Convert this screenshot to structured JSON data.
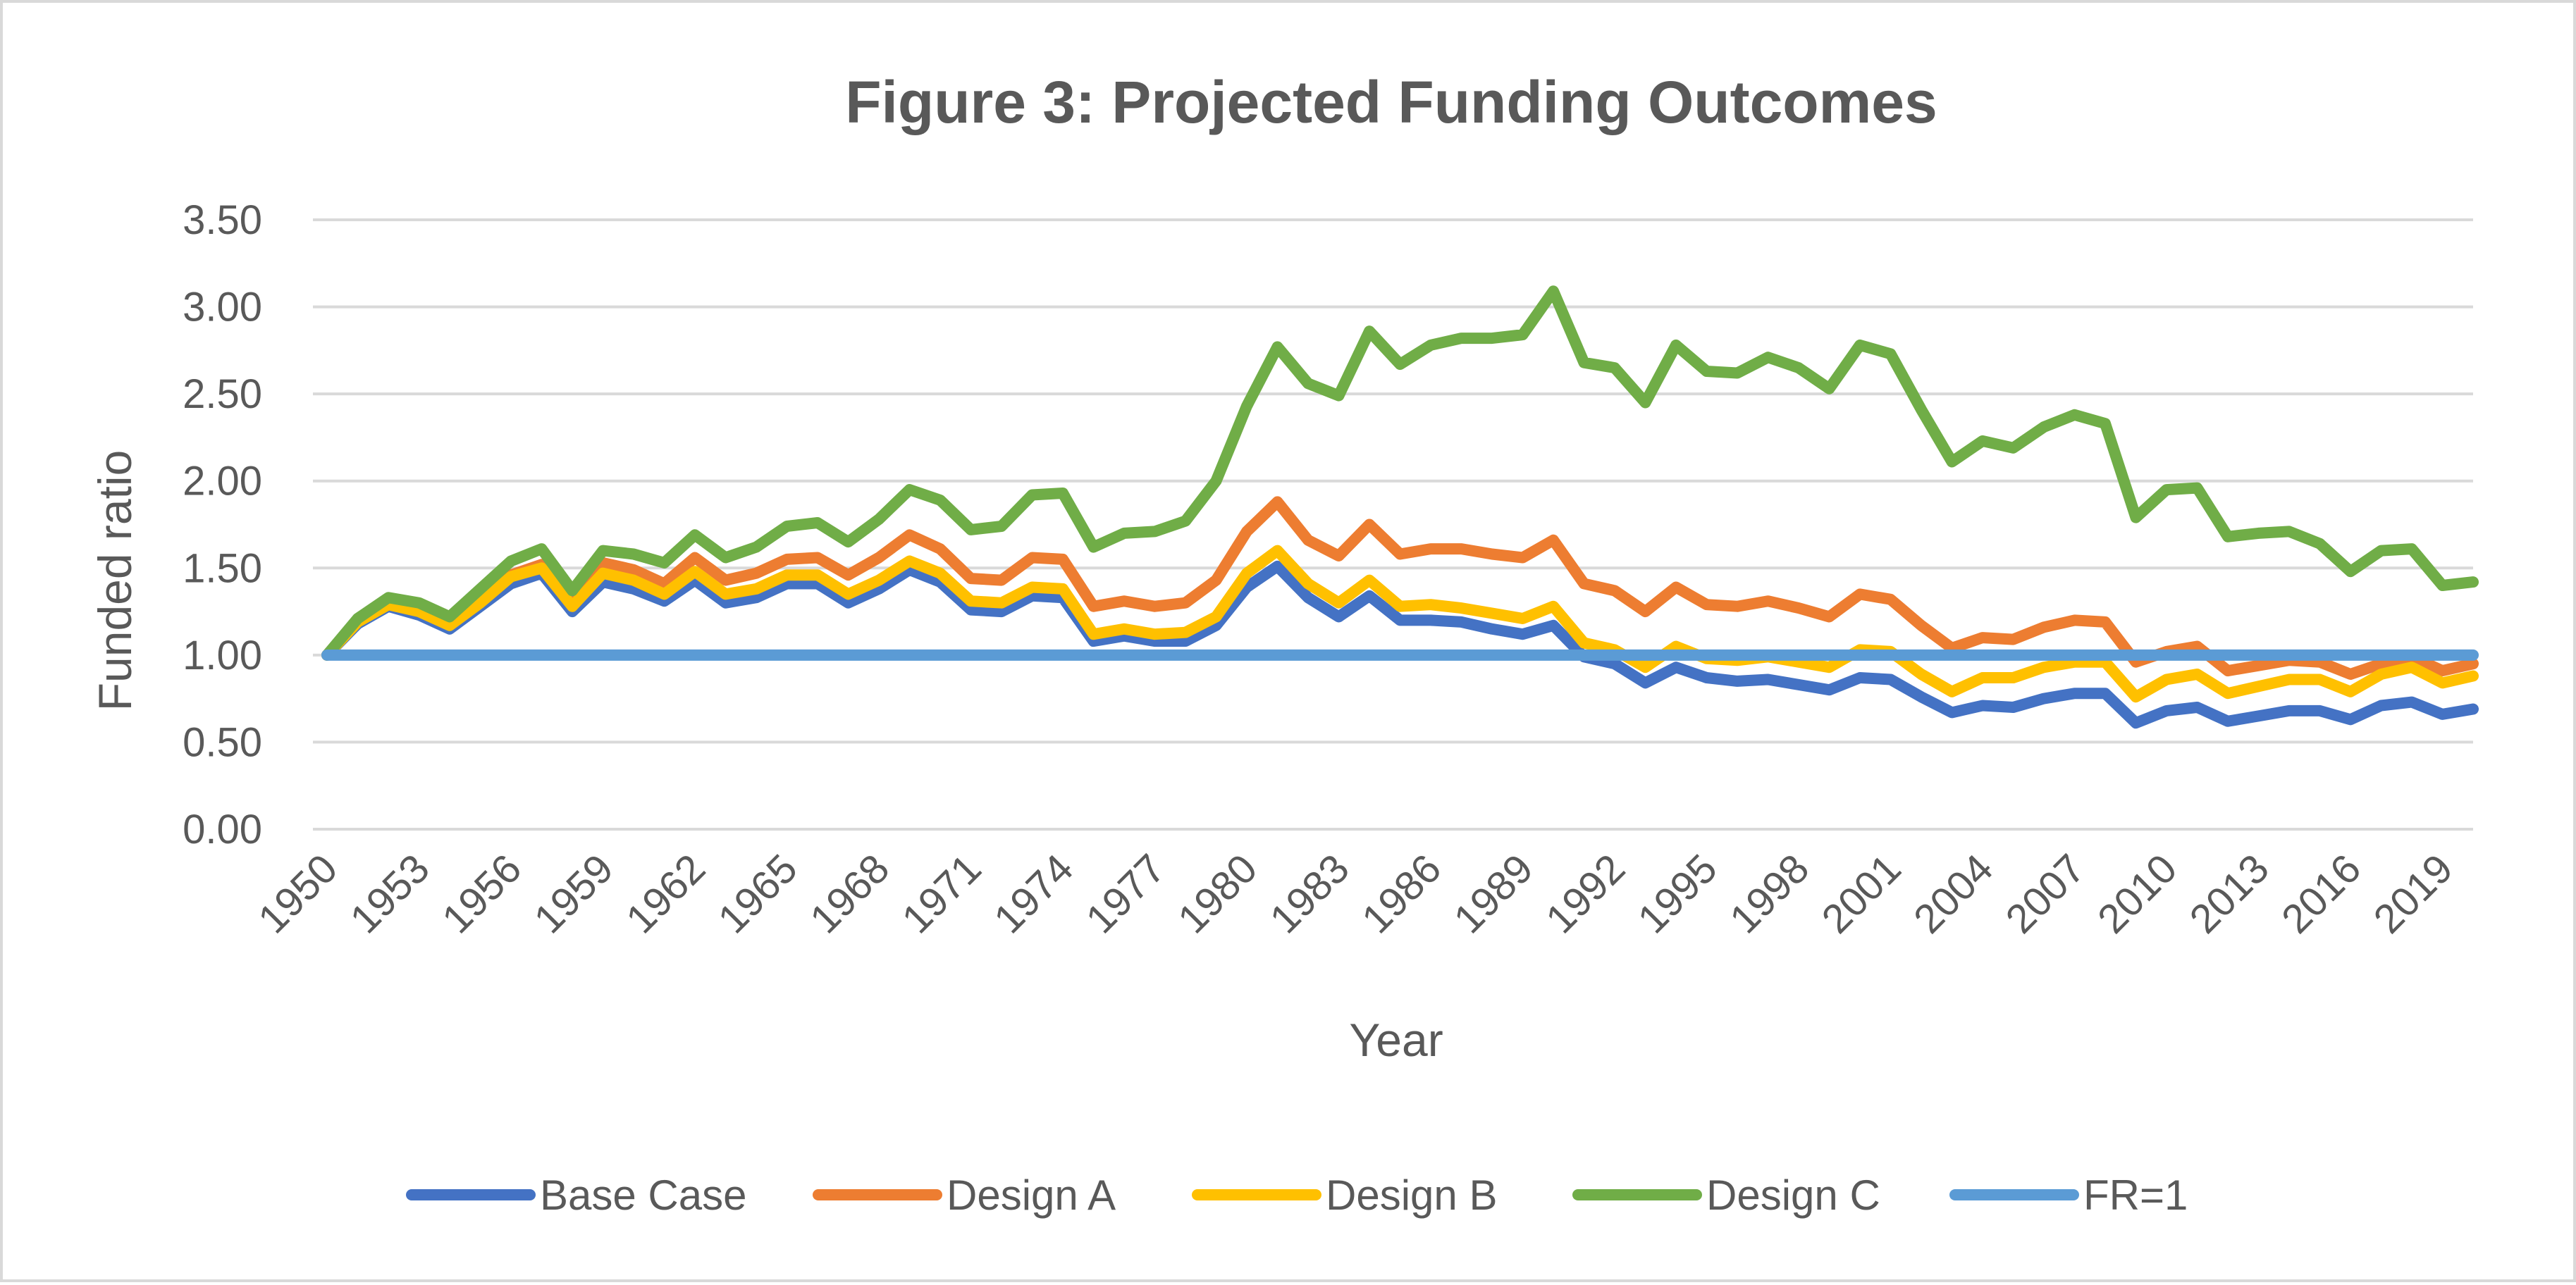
{
  "chart_data": {
    "type": "line",
    "title": "Figure 3: Projected Funding Outcomes",
    "xlabel": "Year",
    "ylabel": "Funded ratio",
    "ylim": [
      0,
      3.5
    ],
    "yticks": [
      "0.00",
      "0.50",
      "1.00",
      "1.50",
      "2.00",
      "2.50",
      "3.00",
      "3.50"
    ],
    "grid": "horizontal",
    "legend_position": "bottom",
    "x": [
      1950,
      1951,
      1952,
      1953,
      1954,
      1955,
      1956,
      1957,
      1958,
      1959,
      1960,
      1961,
      1962,
      1963,
      1964,
      1965,
      1966,
      1967,
      1968,
      1969,
      1970,
      1971,
      1972,
      1973,
      1974,
      1975,
      1976,
      1977,
      1978,
      1979,
      1980,
      1981,
      1982,
      1983,
      1984,
      1985,
      1986,
      1987,
      1988,
      1989,
      1990,
      1991,
      1992,
      1993,
      1994,
      1995,
      1996,
      1997,
      1998,
      1999,
      2000,
      2001,
      2002,
      2003,
      2004,
      2005,
      2006,
      2007,
      2008,
      2009,
      2010,
      2011,
      2012,
      2013,
      2014,
      2015,
      2016,
      2017,
      2018,
      2019,
      2020
    ],
    "xticks": [
      "1950",
      "1953",
      "1956",
      "1959",
      "1962",
      "1965",
      "1968",
      "1971",
      "1974",
      "1977",
      "1980",
      "1983",
      "1986",
      "1989",
      "1992",
      "1995",
      "1998",
      "2001",
      "2004",
      "2007",
      "2010",
      "2013",
      "2016",
      "2019"
    ],
    "series": [
      {
        "name": "Base Case",
        "color": "#4472C4",
        "values": [
          1.0,
          1.18,
          1.28,
          1.23,
          1.15,
          1.28,
          1.41,
          1.47,
          1.25,
          1.42,
          1.38,
          1.31,
          1.43,
          1.3,
          1.33,
          1.41,
          1.41,
          1.3,
          1.38,
          1.49,
          1.42,
          1.26,
          1.25,
          1.34,
          1.33,
          1.08,
          1.11,
          1.08,
          1.08,
          1.17,
          1.39,
          1.51,
          1.33,
          1.22,
          1.34,
          1.2,
          1.2,
          1.19,
          1.15,
          1.12,
          1.17,
          0.99,
          0.95,
          0.84,
          0.93,
          0.87,
          0.85,
          0.86,
          0.83,
          0.8,
          0.87,
          0.86,
          0.76,
          0.67,
          0.71,
          0.7,
          0.75,
          0.78,
          0.78,
          0.61,
          0.68,
          0.7,
          0.62,
          0.65,
          0.68,
          0.68,
          0.63,
          0.71,
          0.73,
          0.66,
          0.69
        ]
      },
      {
        "name": "Design A",
        "color": "#ED7D31",
        "values": [
          1.0,
          1.2,
          1.3,
          1.27,
          1.2,
          1.33,
          1.46,
          1.52,
          1.33,
          1.53,
          1.49,
          1.41,
          1.56,
          1.43,
          1.47,
          1.55,
          1.56,
          1.46,
          1.56,
          1.69,
          1.61,
          1.44,
          1.43,
          1.56,
          1.55,
          1.28,
          1.31,
          1.28,
          1.3,
          1.43,
          1.71,
          1.88,
          1.66,
          1.57,
          1.75,
          1.58,
          1.61,
          1.61,
          1.58,
          1.56,
          1.66,
          1.41,
          1.37,
          1.25,
          1.39,
          1.29,
          1.28,
          1.31,
          1.27,
          1.22,
          1.35,
          1.32,
          1.17,
          1.04,
          1.1,
          1.09,
          1.16,
          1.2,
          1.19,
          0.96,
          1.02,
          1.05,
          0.91,
          0.94,
          0.97,
          0.96,
          0.89,
          0.95,
          0.99,
          0.91,
          0.95
        ]
      },
      {
        "name": "Design B",
        "color": "#FFC000",
        "values": [
          1.0,
          1.19,
          1.29,
          1.25,
          1.17,
          1.3,
          1.45,
          1.5,
          1.28,
          1.47,
          1.43,
          1.35,
          1.48,
          1.35,
          1.38,
          1.46,
          1.46,
          1.35,
          1.43,
          1.54,
          1.47,
          1.31,
          1.3,
          1.39,
          1.38,
          1.12,
          1.15,
          1.12,
          1.13,
          1.22,
          1.47,
          1.6,
          1.41,
          1.3,
          1.43,
          1.28,
          1.29,
          1.27,
          1.24,
          1.21,
          1.28,
          1.07,
          1.03,
          0.93,
          1.05,
          0.98,
          0.97,
          0.99,
          0.96,
          0.93,
          1.03,
          1.02,
          0.89,
          0.79,
          0.87,
          0.87,
          0.93,
          0.96,
          0.96,
          0.76,
          0.86,
          0.89,
          0.78,
          0.82,
          0.86,
          0.86,
          0.79,
          0.89,
          0.93,
          0.84,
          0.88
        ]
      },
      {
        "name": "Design C",
        "color": "#70AD47",
        "values": [
          1.0,
          1.21,
          1.33,
          1.3,
          1.22,
          1.38,
          1.54,
          1.61,
          1.37,
          1.6,
          1.58,
          1.53,
          1.69,
          1.56,
          1.62,
          1.74,
          1.76,
          1.65,
          1.78,
          1.95,
          1.89,
          1.72,
          1.74,
          1.92,
          1.93,
          1.62,
          1.7,
          1.71,
          1.77,
          2.0,
          2.43,
          2.77,
          2.56,
          2.49,
          2.86,
          2.67,
          2.78,
          2.82,
          2.82,
          2.84,
          3.09,
          2.68,
          2.65,
          2.45,
          2.78,
          2.63,
          2.62,
          2.71,
          2.65,
          2.53,
          2.78,
          2.73,
          2.41,
          2.11,
          2.23,
          2.19,
          2.31,
          2.38,
          2.33,
          1.79,
          1.95,
          1.96,
          1.68,
          1.7,
          1.71,
          1.64,
          1.48,
          1.6,
          1.61,
          1.4,
          1.42
        ]
      },
      {
        "name": "FR=1",
        "color": "#5B9BD5",
        "values": [
          1,
          1,
          1,
          1,
          1,
          1,
          1,
          1,
          1,
          1,
          1,
          1,
          1,
          1,
          1,
          1,
          1,
          1,
          1,
          1,
          1,
          1,
          1,
          1,
          1,
          1,
          1,
          1,
          1,
          1,
          1,
          1,
          1,
          1,
          1,
          1,
          1,
          1,
          1,
          1,
          1,
          1,
          1,
          1,
          1,
          1,
          1,
          1,
          1,
          1,
          1,
          1,
          1,
          1,
          1,
          1,
          1,
          1,
          1,
          1,
          1,
          1,
          1,
          1,
          1,
          1,
          1,
          1,
          1,
          1,
          1
        ]
      }
    ]
  }
}
